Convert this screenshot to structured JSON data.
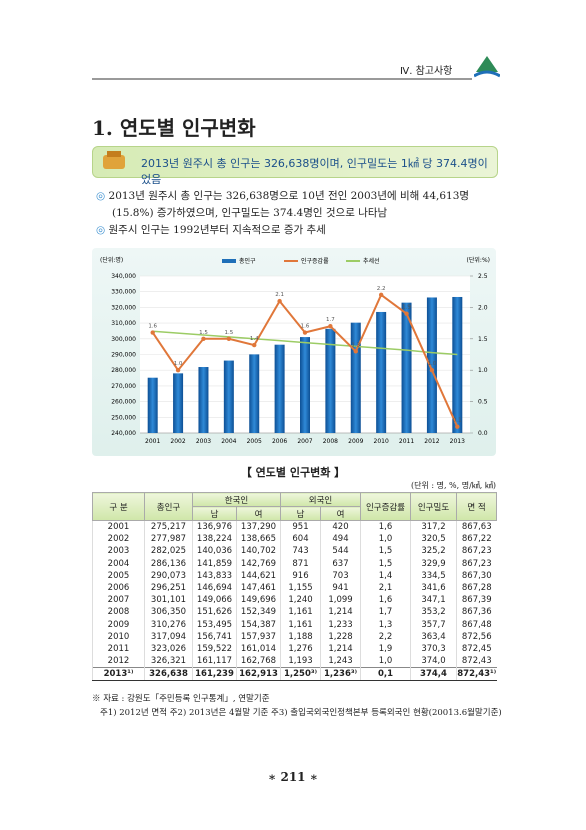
{
  "header": {
    "section": "Ⅳ. 참고사항"
  },
  "title": "1. 연도별 인구변화",
  "highlight": "2013년 원주시 총 인구는 326,638명이며, 인구밀도는 1㎢ 당 374.4명이었음",
  "bullets": [
    "2013년 원주시 총 인구는 326,638명으로 10년 전인 2003년에 비해 44,613명 (15.8%) 증가하였으며, 인구밀도는 374.4명인 것으로 나타남",
    "원주시 인구는 1992년부터 지속적으로 증가 추세"
  ],
  "chart_data": {
    "type": "bar",
    "y_unit": "(단위:명)",
    "y2_unit": "(단위:%)",
    "categories": [
      "2001",
      "2002",
      "2003",
      "2004",
      "2005",
      "2006",
      "2007",
      "2008",
      "2009",
      "2010",
      "2011",
      "2012",
      "2013"
    ],
    "series": [
      {
        "name": "총인구",
        "type": "bar",
        "color": "#1f6fb8",
        "values": [
          275217,
          277987,
          282025,
          286136,
          290073,
          296251,
          301101,
          306350,
          310276,
          317094,
          323026,
          326321,
          326638
        ]
      },
      {
        "name": "인구증감률",
        "type": "line",
        "axis": "y2",
        "color": "#e0773a",
        "values": [
          1.6,
          1.0,
          1.5,
          1.5,
          1.4,
          2.1,
          1.6,
          1.7,
          1.3,
          2.2,
          1.9,
          1.0,
          0.1
        ],
        "value_labels": [
          "1.6",
          "1.0",
          "1.5",
          "1.5",
          "1.4",
          "2.1",
          "1.6",
          "1.7",
          "1.3",
          "2.2",
          "1.9",
          "1.0",
          "0.1"
        ]
      },
      {
        "name": "추세선",
        "type": "line",
        "axis": "y2",
        "color": "#9ccc65",
        "values": [
          1.62,
          1.59,
          1.56,
          1.53,
          1.5,
          1.47,
          1.44,
          1.41,
          1.38,
          1.35,
          1.32,
          1.28,
          1.25
        ]
      }
    ],
    "ylim": [
      240000,
      340000
    ],
    "yticks": [
      {
        "value": 240000,
        "label": "240,000"
      },
      {
        "value": 250000,
        "label": "250,000"
      },
      {
        "value": 260000,
        "label": "260,000"
      },
      {
        "value": 270000,
        "label": "270,000"
      },
      {
        "value": 280000,
        "label": "280,000"
      },
      {
        "value": 290000,
        "label": "290,000"
      },
      {
        "value": 300000,
        "label": "300,000"
      },
      {
        "value": 310000,
        "label": "310,000"
      },
      {
        "value": 320000,
        "label": "320,000"
      },
      {
        "value": 330000,
        "label": "330,000"
      },
      {
        "value": 340000,
        "label": "340,000"
      }
    ],
    "y2lim": [
      0,
      2.5
    ],
    "y2ticks": [
      {
        "value": 0,
        "label": "0.0"
      },
      0.5,
      {
        "value": 1,
        "label": "1.0"
      },
      1.5,
      {
        "value": 2,
        "label": "2.0"
      },
      2.5
    ]
  },
  "table": {
    "caption": "【 연도별 인구변화 】",
    "unit": "(단위 : 명, %, 명/㎢, ㎢)",
    "header": {
      "year": "구 분",
      "total": "총인구",
      "korean": "한국인",
      "foreign": "외국인",
      "rate": "인구증감률",
      "density": "인구밀도",
      "area": "면 적",
      "male": "남",
      "female": "여"
    },
    "rows": [
      [
        "2001",
        "275,217",
        "136,976",
        "137,290",
        "951",
        "420",
        "1,6",
        "317,2",
        "867,63"
      ],
      [
        "2002",
        "277,987",
        "138,224",
        "138,665",
        "604",
        "494",
        "1,0",
        "320,5",
        "867,22"
      ],
      [
        "2003",
        "282,025",
        "140,036",
        "140,702",
        "743",
        "544",
        "1,5",
        "325,2",
        "867,23"
      ],
      [
        "2004",
        "286,136",
        "141,859",
        "142,769",
        "871",
        "637",
        "1,5",
        "329,9",
        "867,23"
      ],
      [
        "2005",
        "290,073",
        "143,833",
        "144,621",
        "916",
        "703",
        "1,4",
        "334,5",
        "867,30"
      ],
      [
        "2006",
        "296,251",
        "146,694",
        "147,461",
        "1,155",
        "941",
        "2,1",
        "341,6",
        "867,28"
      ],
      [
        "2007",
        "301,101",
        "149,066",
        "149,696",
        "1,240",
        "1,099",
        "1,6",
        "347,1",
        "867,39"
      ],
      [
        "2008",
        "306,350",
        "151,626",
        "152,349",
        "1,161",
        "1,214",
        "1,7",
        "353,2",
        "867,36"
      ],
      [
        "2009",
        "310,276",
        "153,495",
        "154,387",
        "1,161",
        "1,233",
        "1,3",
        "357,7",
        "867,48"
      ],
      [
        "2010",
        "317,094",
        "156,741",
        "157,937",
        "1,188",
        "1,228",
        "2,2",
        "363,4",
        "872,56"
      ],
      [
        "2011",
        "323,026",
        "159,522",
        "161,014",
        "1,276",
        "1,214",
        "1,9",
        "370,3",
        "872,45"
      ],
      [
        "2012",
        "326,321",
        "161,117",
        "162,768",
        "1,193",
        "1,243",
        "1,0",
        "374,0",
        "872,43"
      ],
      [
        "2013¹⁾",
        "326,638",
        "161,239",
        "162,913",
        "1,250³⁾",
        "1,236³⁾",
        "0,1",
        "374,4",
        "872,43¹⁾"
      ]
    ]
  },
  "notes": [
    "※ 자료 : 강원도「주민등록 인구통계」, 연말기준",
    "주1) 2012년 면적  주2) 2013년은 4월말 기준  주3) 출입국외국인정책본부 등록외국인 현황(20013.6월말기준)"
  ],
  "page_number": "∗ 211 ∗"
}
